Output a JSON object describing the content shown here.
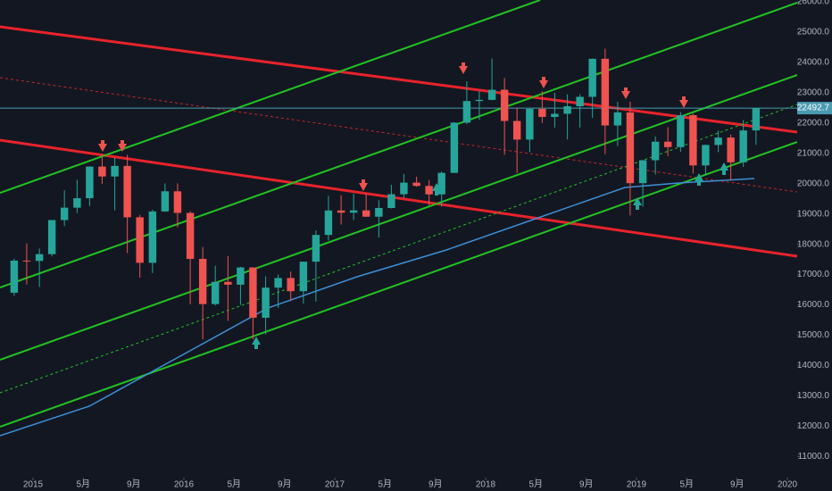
{
  "chart_data": {
    "type": "candlestick",
    "background": "#131722",
    "up_color": "#26a69a",
    "down_color": "#ef5350",
    "xlim": [
      2014.781,
      2020.065
    ],
    "ylim": [
      10300,
      26060
    ],
    "xticks": [
      {
        "value": 2015,
        "label": "2015"
      },
      {
        "value": 2015.333,
        "label": "5月"
      },
      {
        "value": 2015.667,
        "label": "9月"
      },
      {
        "value": 2016,
        "label": "2016"
      },
      {
        "value": 2016.333,
        "label": "5月"
      },
      {
        "value": 2016.667,
        "label": "9月"
      },
      {
        "value": 2017,
        "label": "2017"
      },
      {
        "value": 2017.333,
        "label": "5月"
      },
      {
        "value": 2017.667,
        "label": "9月"
      },
      {
        "value": 2018,
        "label": "2018"
      },
      {
        "value": 2018.333,
        "label": "5月"
      },
      {
        "value": 2018.667,
        "label": "9月"
      },
      {
        "value": 2019,
        "label": "2019"
      },
      {
        "value": 2019.333,
        "label": "5月"
      },
      {
        "value": 2019.667,
        "label": "9月"
      },
      {
        "value": 2020,
        "label": "2020"
      }
    ],
    "yticks": [
      {
        "value": 11000,
        "label": "11000.0"
      },
      {
        "value": 12000,
        "label": "12000.0"
      },
      {
        "value": 13000,
        "label": "13000.0"
      },
      {
        "value": 14000,
        "label": "14000.0"
      },
      {
        "value": 15000,
        "label": "15000.0"
      },
      {
        "value": 16000,
        "label": "16000.0"
      },
      {
        "value": 17000,
        "label": "17000.0"
      },
      {
        "value": 18000,
        "label": "18000.0"
      },
      {
        "value": 19000,
        "label": "19000.0"
      },
      {
        "value": 20000,
        "label": "20000.0"
      },
      {
        "value": 21000,
        "label": "21000.0"
      },
      {
        "value": 22000,
        "label": "22000.0"
      },
      {
        "value": 23000,
        "label": "23000.0"
      },
      {
        "value": 24000,
        "label": "24000.0"
      },
      {
        "value": 25000,
        "label": "25000.0"
      },
      {
        "value": 26000,
        "label": "26000.0"
      }
    ],
    "last_price": 22492.7,
    "price_line_color": "#4a9bb0",
    "candles": {
      "x": [
        2014.875,
        2014.958,
        2015.042,
        2015.125,
        2015.208,
        2015.292,
        2015.375,
        2015.458,
        2015.542,
        2015.625,
        2015.708,
        2015.792,
        2015.875,
        2015.958,
        2016.042,
        2016.125,
        2016.208,
        2016.292,
        2016.375,
        2016.458,
        2016.542,
        2016.625,
        2016.708,
        2016.792,
        2016.875,
        2016.958,
        2017.042,
        2017.125,
        2017.208,
        2017.292,
        2017.375,
        2017.458,
        2017.542,
        2017.625,
        2017.708,
        2017.792,
        2017.875,
        2017.958,
        2018.042,
        2018.125,
        2018.208,
        2018.292,
        2018.375,
        2018.458,
        2018.542,
        2018.625,
        2018.708,
        2018.792,
        2018.875,
        2018.958,
        2019.042,
        2019.125,
        2019.208,
        2019.292,
        2019.375,
        2019.458,
        2019.542,
        2019.625,
        2019.708,
        2019.792
      ],
      "open": [
        16400,
        17460,
        17450,
        17674,
        18798,
        19207,
        19520,
        20563,
        20236,
        20585,
        18890,
        17388,
        19083,
        19747,
        19034,
        17518,
        16027,
        16759,
        16666,
        17235,
        15576,
        16569,
        16887,
        16450,
        17425,
        18308,
        19114,
        19041,
        19119,
        18909,
        19197,
        19651,
        20033,
        19925,
        19646,
        20356,
        22012,
        22725,
        22765,
        23098,
        22068,
        21454,
        22468,
        22202,
        22305,
        22554,
        22865,
        24120,
        21920,
        22351,
        20015,
        20773,
        21385,
        21206,
        22259,
        20601,
        21276,
        21521,
        20704,
        21756
      ],
      "high": [
        17520,
        18030,
        17860,
        18800,
        19780,
        20130,
        20570,
        20950,
        20850,
        20950,
        18970,
        19140,
        20010,
        20010,
        19090,
        17910,
        17290,
        17610,
        17250,
        17240,
        16940,
        17000,
        17100,
        17430,
        18460,
        19600,
        19620,
        19670,
        19670,
        19450,
        19960,
        20320,
        20230,
        20120,
        20400,
        22030,
        23380,
        23050,
        24130,
        23490,
        22500,
        22500,
        23050,
        23000,
        22950,
        22950,
        24130,
        24450,
        22700,
        22700,
        20670,
        21560,
        21860,
        22360,
        22310,
        21290,
        21750,
        21620,
        22100,
        22500
      ],
      "low": [
        16300,
        16670,
        16590,
        17600,
        18600,
        19030,
        19260,
        19990,
        19120,
        17710,
        16900,
        17050,
        19070,
        18560,
        16020,
        14860,
        15980,
        15470,
        16000,
        14860,
        15030,
        15900,
        16120,
        16040,
        16110,
        18120,
        18650,
        18800,
        18900,
        18220,
        19180,
        19520,
        19900,
        19280,
        19240,
        20350,
        21970,
        22110,
        22750,
        20950,
        20350,
        21040,
        22000,
        21850,
        21460,
        21850,
        22170,
        20970,
        21240,
        18950,
        19240,
        20300,
        20910,
        21050,
        20330,
        20290,
        21040,
        20110,
        20550,
        21280
      ],
      "close": [
        17460,
        17450,
        17674,
        18798,
        19207,
        19520,
        20563,
        20236,
        20585,
        18890,
        17388,
        19083,
        19747,
        19034,
        17518,
        16027,
        16759,
        16666,
        17235,
        15576,
        16569,
        16887,
        16450,
        17425,
        18308,
        19114,
        19041,
        19119,
        18909,
        19197,
        19651,
        20033,
        19925,
        19646,
        20356,
        22012,
        22725,
        22765,
        23098,
        22068,
        21454,
        22468,
        22202,
        22305,
        22554,
        22865,
        24120,
        21920,
        22351,
        20015,
        20773,
        21385,
        21206,
        22259,
        20601,
        21276,
        21521,
        20704,
        21756,
        22492.7
      ]
    },
    "moving_average": {
      "color": "#3d8fd6",
      "x": [
        2014.781,
        2015.373,
        2015.964,
        2016.556,
        2017.148,
        2017.74,
        2018.331,
        2018.923,
        2019.278,
        2019.781
      ],
      "y": [
        11684,
        12657,
        14277,
        15897,
        16928,
        17812,
        18843,
        19874,
        20021,
        20168
      ]
    },
    "lines": [
      {
        "color": "#e8232b",
        "width": 3,
        "dashed": false,
        "x": [
          2014.781,
          2020.065
        ],
        "y": [
          25176,
          21700
        ]
      },
      {
        "color": "#e8232b",
        "width": 3,
        "dashed": false,
        "x": [
          2014.781,
          2020.065
        ],
        "y": [
          21435,
          17605
        ]
      },
      {
        "color": "#c62828",
        "width": 1,
        "dashed": true,
        "x": [
          2014.781,
          2020.065
        ],
        "y": [
          23497,
          19726
        ]
      },
      {
        "color": "#22c322",
        "width": 2,
        "dashed": false,
        "x": [
          2014.781,
          2018.361
        ],
        "y": [
          19697,
          26060
        ]
      },
      {
        "color": "#22c322",
        "width": 2,
        "dashed": false,
        "x": [
          2014.781,
          2020.065
        ],
        "y": [
          16574,
          25972
        ]
      },
      {
        "color": "#22c322",
        "width": 2,
        "dashed": false,
        "x": [
          2014.781,
          2020.065
        ],
        "y": [
          14188,
          23586
        ]
      },
      {
        "color": "#22c322",
        "width": 2,
        "dashed": false,
        "x": [
          2014.781,
          2020.065
        ],
        "y": [
          11978,
          21376
        ]
      },
      {
        "color": "#22c322",
        "width": 1,
        "dashed": true,
        "x": [
          2014.781,
          2020.065
        ],
        "y": [
          13097,
          22613
        ]
      }
    ]
  }
}
